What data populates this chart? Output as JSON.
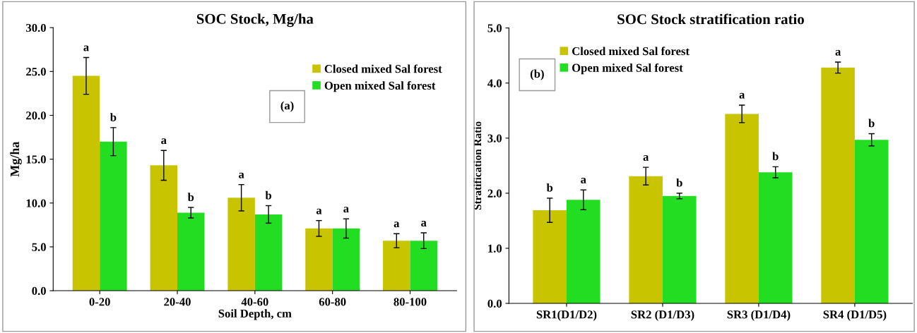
{
  "chart_data": [
    {
      "type": "bar",
      "title": "SOC Stock, Mg/ha",
      "xlabel": "Soil Depth, cm",
      "ylabel": "Mg/ha",
      "categories": [
        "0-20",
        "20-40",
        "40-60",
        "60-80",
        "80-100"
      ],
      "series": [
        {
          "name": "Closed mixed Sal forest",
          "color": "#c8c400",
          "values": [
            24.5,
            14.3,
            10.6,
            7.1,
            5.7
          ],
          "errors": [
            2.1,
            1.7,
            1.5,
            0.9,
            0.8
          ],
          "value_labels": [
            "a",
            "a",
            "a",
            "a",
            "a"
          ]
        },
        {
          "name": "Open mixed Sal forest",
          "color": "#22dd22",
          "values": [
            17.0,
            8.9,
            8.7,
            7.1,
            5.7
          ],
          "errors": [
            1.6,
            0.6,
            1.0,
            1.1,
            0.9
          ],
          "value_labels": [
            "b",
            "b",
            "b",
            "a",
            "a"
          ]
        }
      ],
      "ylim": [
        0,
        30
      ],
      "yticks": [
        {
          "value": 0,
          "label": "0.0"
        },
        {
          "value": 5,
          "label": "5.0"
        },
        {
          "value": 10,
          "label": "10.0"
        },
        {
          "value": 15,
          "label": "15.0"
        },
        {
          "value": 20,
          "label": "20.0"
        },
        {
          "value": 25,
          "label": "25.0"
        },
        {
          "value": 30,
          "label": "30.0"
        }
      ],
      "annotations": [
        "(a)"
      ],
      "legend": "top right"
    },
    {
      "type": "bar",
      "title": "SOC Stock stratification ratio",
      "ylabel": "Stratification Ratio",
      "categories": [
        "SR1(D1/D2)",
        "SR2 (D1/D3)",
        "SR3 (D1/D4)",
        "SR4 (D1/D5)"
      ],
      "series": [
        {
          "name": "Closed mixed Sal forest",
          "color": "#c8c400",
          "values": [
            1.69,
            2.31,
            3.44,
            4.28
          ],
          "errors": [
            0.22,
            0.16,
            0.16,
            0.1
          ],
          "value_labels": [
            "b",
            "a",
            "a",
            "a"
          ]
        },
        {
          "name": "Open mixed Sal forest",
          "color": "#22dd22",
          "values": [
            1.88,
            1.95,
            2.38,
            2.97
          ],
          "errors": [
            0.18,
            0.05,
            0.1,
            0.11
          ],
          "value_labels": [
            "a",
            "b",
            "b",
            "b"
          ]
        }
      ],
      "ylim": [
        0,
        5
      ],
      "yticks": [
        {
          "value": 0,
          "label": "0.0"
        },
        {
          "value": 1,
          "label": "1.0"
        },
        {
          "value": 2,
          "label": "2.0"
        },
        {
          "value": 3,
          "label": "3.0"
        },
        {
          "value": 4,
          "label": "4.0"
        },
        {
          "value": 5,
          "label": "5.0"
        }
      ],
      "annotations": [
        "(b)"
      ],
      "legend": "top left"
    }
  ]
}
